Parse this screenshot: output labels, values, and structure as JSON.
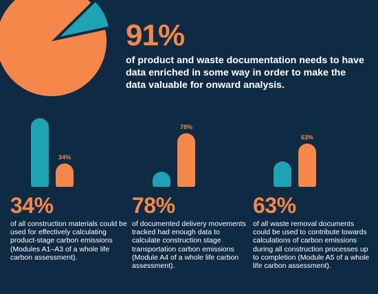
{
  "colors": {
    "background": "#0f2b44",
    "orange": "#f5874a",
    "teal": "#1fa2b3",
    "white": "#ffffff"
  },
  "headline": {
    "percent": "91%",
    "text": "of product and waste documentation needs to have data enriched in some way in order to make the data valuable for onward analysis."
  },
  "panels": [
    {
      "percent": "34%",
      "description": "of all construction materials could be used for effectively calculating product-stage carbon emissions (Modules A1–A3 of a whole life carbon assessment)."
    },
    {
      "percent": "78%",
      "description": "of documented delivery movements tracked had enough data to calculate construction stage transportation carbon emissions (Module A4 of a whole life carbon assessment)."
    },
    {
      "percent": "63%",
      "description": "of all waste removal documents could be used to contribute towards calculations of carbon emissions during all construction processes up to completion (Module A5 of a whole life carbon assessment)."
    }
  ],
  "chart_data": [
    {
      "type": "pie",
      "values": [
        91,
        9
      ],
      "colors": [
        "#f5874a",
        "#1fa2b3"
      ],
      "highlighted_value": 91,
      "exploded_slice": 1
    },
    {
      "type": "bar",
      "values": [
        100,
        34
      ],
      "colors": [
        "#1fa2b3",
        "#f5874a"
      ],
      "data_labels": [
        "",
        "34%"
      ]
    },
    {
      "type": "bar",
      "values": [
        22,
        78
      ],
      "colors": [
        "#1fa2b3",
        "#f5874a"
      ],
      "data_labels": [
        "",
        "78%"
      ]
    },
    {
      "type": "bar",
      "values": [
        37,
        63
      ],
      "colors": [
        "#1fa2b3",
        "#f5874a"
      ],
      "data_labels": [
        "",
        "63%"
      ]
    }
  ]
}
